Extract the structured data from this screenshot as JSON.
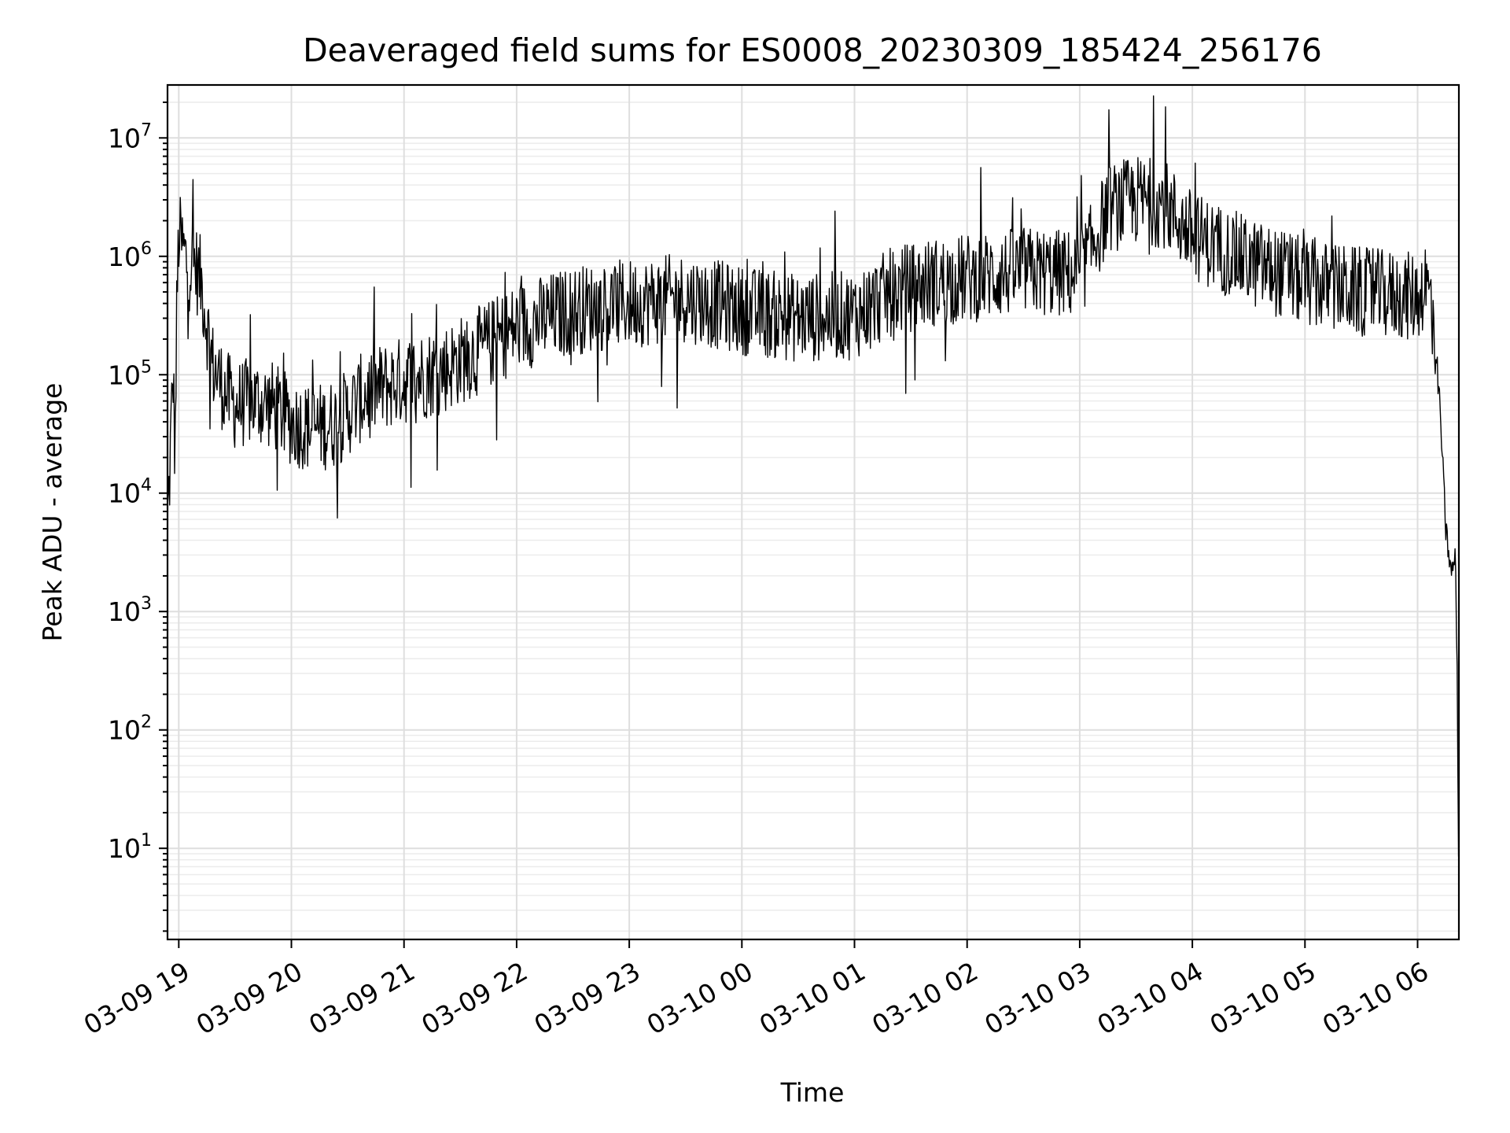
{
  "chart_data": {
    "type": "line",
    "title": "Deaveraged field sums for ES0008_20230309_185424_256176",
    "xlabel": "Time",
    "ylabel": "Peak ADU - average",
    "yscale": "log",
    "grid": true,
    "ylim": [
      1.7,
      28000000
    ],
    "xlim": [
      "2023-03-09 18:54",
      "2023-03-10 06:22"
    ],
    "x_ticks": [
      {
        "t": "2023-03-09 19:00",
        "label": "03-09 19"
      },
      {
        "t": "2023-03-09 20:00",
        "label": "03-09 20"
      },
      {
        "t": "2023-03-09 21:00",
        "label": "03-09 21"
      },
      {
        "t": "2023-03-09 22:00",
        "label": "03-09 22"
      },
      {
        "t": "2023-03-09 23:00",
        "label": "03-09 23"
      },
      {
        "t": "2023-03-10 00:00",
        "label": "03-10 00"
      },
      {
        "t": "2023-03-10 01:00",
        "label": "03-10 01"
      },
      {
        "t": "2023-03-10 02:00",
        "label": "03-10 02"
      },
      {
        "t": "2023-03-10 03:00",
        "label": "03-10 03"
      },
      {
        "t": "2023-03-10 04:00",
        "label": "03-10 04"
      },
      {
        "t": "2023-03-10 05:00",
        "label": "03-10 05"
      },
      {
        "t": "2023-03-10 06:00",
        "label": "03-10 06"
      }
    ],
    "y_ticks": [
      {
        "value": 10,
        "base": "10",
        "exp": "1"
      },
      {
        "value": 100,
        "base": "10",
        "exp": "2"
      },
      {
        "value": 1000,
        "base": "10",
        "exp": "3"
      },
      {
        "value": 10000,
        "base": "10",
        "exp": "4"
      },
      {
        "value": 100000,
        "base": "10",
        "exp": "5"
      },
      {
        "value": 1000000,
        "base": "10",
        "exp": "6"
      },
      {
        "value": 10000000,
        "base": "10",
        "exp": "7"
      }
    ],
    "series": [
      {
        "color": "#000000",
        "x": [
          "2023-03-09 18:54",
          "2023-03-09 18:55",
          "2023-03-09 18:56",
          "2023-03-09 18:57",
          "2023-03-09 18:58",
          "2023-03-09 18:59",
          "2023-03-09 19:00",
          "2023-03-09 19:02",
          "2023-03-09 19:05",
          "2023-03-09 19:08",
          "2023-03-09 19:12",
          "2023-03-09 19:18",
          "2023-03-09 19:25",
          "2023-03-09 19:30",
          "2023-03-09 19:40",
          "2023-03-09 19:50",
          "2023-03-09 20:00",
          "2023-03-09 20:12",
          "2023-03-09 20:25",
          "2023-03-09 20:40",
          "2023-03-09 21:00",
          "2023-03-09 21:20",
          "2023-03-09 21:40",
          "2023-03-09 22:00",
          "2023-03-09 22:30",
          "2023-03-09 23:00",
          "2023-03-09 23:30",
          "2023-03-10 00:00",
          "2023-03-10 00:30",
          "2023-03-10 01:00",
          "2023-03-10 01:20",
          "2023-03-10 01:40",
          "2023-03-10 02:00",
          "2023-03-10 02:30",
          "2023-03-10 03:00",
          "2023-03-10 03:15",
          "2023-03-10 03:30",
          "2023-03-10 03:45",
          "2023-03-10 04:00",
          "2023-03-10 04:30",
          "2023-03-10 05:00",
          "2023-03-10 05:30",
          "2023-03-10 06:00",
          "2023-03-10 06:04",
          "2023-03-10 06:08",
          "2023-03-10 06:12",
          "2023-03-10 06:15",
          "2023-03-10 06:18",
          "2023-03-10 06:20",
          "2023-03-10 06:21",
          "2023-03-10 06:22"
        ],
        "y": [
          6000,
          12000,
          40000,
          100000,
          20000,
          400000,
          1500000,
          1200000,
          800000,
          900000,
          600000,
          120000,
          70000,
          55000,
          60000,
          55000,
          40000,
          35000,
          40000,
          70000,
          90000,
          110000,
          160000,
          250000,
          350000,
          400000,
          450000,
          350000,
          300000,
          320000,
          500000,
          600000,
          650000,
          750000,
          700000,
          2500000,
          3000000,
          2800000,
          1500000,
          900000,
          600000,
          500000,
          450000,
          600000,
          400000,
          50000,
          5000,
          2000,
          3000,
          500,
          3.5
        ]
      }
    ]
  }
}
